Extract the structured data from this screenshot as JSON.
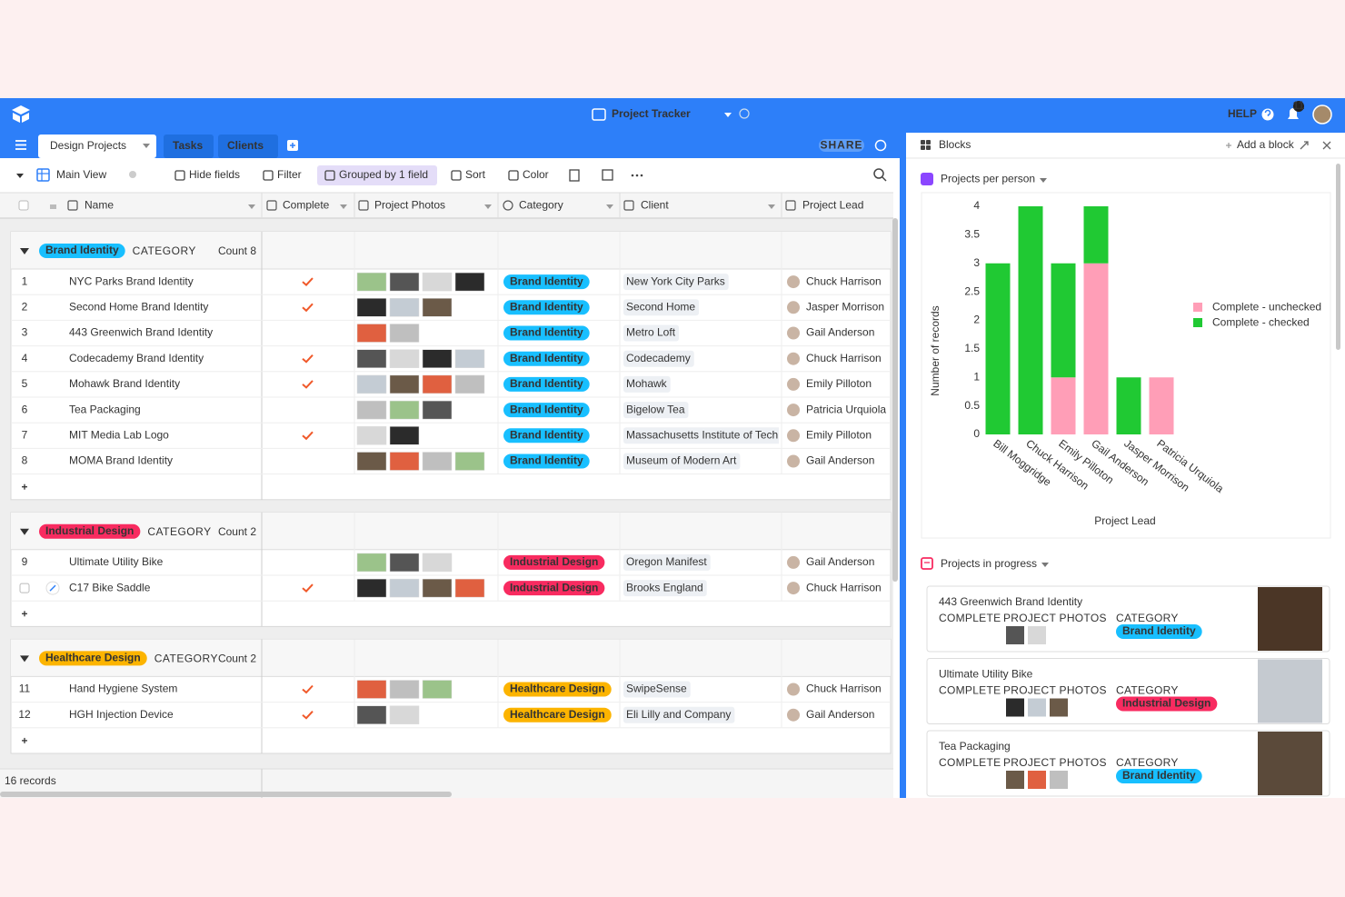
{
  "topbar": {
    "title": "Project Tracker",
    "help": "HELP",
    "notifications": 11
  },
  "tabs": {
    "items": [
      "Design Projects",
      "Tasks",
      "Clients"
    ],
    "share": "SHARE"
  },
  "toolbar": {
    "view": "Main View",
    "items": [
      "Hide fields",
      "Filter",
      "Grouped by 1 field",
      "Sort",
      "Color"
    ]
  },
  "table": {
    "columns": [
      "Name",
      "Complete",
      "Project Photos",
      "Category",
      "Client",
      "Project Lead"
    ],
    "groups": [
      {
        "label": "Brand Identity",
        "sublabel": "CATEGORY",
        "count": "Count 8",
        "color": "#18bfff",
        "rows": [
          {
            "num": 1,
            "name": "NYC Parks Brand Identity",
            "complete": true,
            "category": "Brand Identity",
            "client": "New York City Parks",
            "lead": "Chuck Harrison"
          },
          {
            "num": 2,
            "name": "Second Home Brand Identity",
            "complete": true,
            "category": "Brand Identity",
            "client": "Second Home",
            "lead": "Jasper Morrison"
          },
          {
            "num": 3,
            "name": "443 Greenwich Brand Identity",
            "complete": false,
            "category": "Brand Identity",
            "client": "Metro Loft",
            "lead": "Gail Anderson"
          },
          {
            "num": 4,
            "name": "Codecademy Brand Identity",
            "complete": true,
            "category": "Brand Identity",
            "client": "Codecademy",
            "lead": "Chuck Harrison"
          },
          {
            "num": 5,
            "name": "Mohawk Brand Identity",
            "complete": true,
            "category": "Brand Identity",
            "client": "Mohawk",
            "lead": "Emily Pilloton"
          },
          {
            "num": 6,
            "name": "Tea Packaging",
            "complete": false,
            "category": "Brand Identity",
            "client": "Bigelow Tea",
            "lead": "Patricia Urquiola"
          },
          {
            "num": 7,
            "name": "MIT Media Lab Logo",
            "complete": true,
            "category": "Brand Identity",
            "client": "Massachusetts Institute of Tech",
            "lead": "Emily Pilloton"
          },
          {
            "num": 8,
            "name": "MOMA Brand Identity",
            "complete": false,
            "category": "Brand Identity",
            "client": "Museum of Modern Art",
            "lead": "Gail Anderson"
          }
        ]
      },
      {
        "label": "Industrial Design",
        "sublabel": "CATEGORY",
        "count": "Count 2",
        "color": "#f82b60",
        "rows": [
          {
            "num": 9,
            "name": "Ultimate Utility Bike",
            "complete": false,
            "category": "Industrial Design",
            "client": "Oregon Manifest",
            "lead": "Gail Anderson"
          },
          {
            "num": null,
            "name": "C17 Bike Saddle",
            "complete": true,
            "category": "Industrial Design",
            "client": "Brooks England",
            "lead": "Chuck Harrison"
          }
        ]
      },
      {
        "label": "Healthcare Design",
        "sublabel": "CATEGORY",
        "count": "Count 2",
        "color": "#fcb400",
        "rows": [
          {
            "num": 11,
            "name": "Hand Hygiene System",
            "complete": true,
            "category": "Healthcare Design",
            "client": "SwipeSense",
            "lead": "Chuck Harrison"
          },
          {
            "num": 12,
            "name": "HGH Injection Device",
            "complete": true,
            "category": "Healthcare Design",
            "client": "Eli Lilly and Company",
            "lead": "Gail Anderson"
          }
        ]
      }
    ],
    "footer": "16 records"
  },
  "blocks": {
    "title": "Blocks",
    "add": "Add a block",
    "chart_title": "Projects per person",
    "list_title": "Projects in progress",
    "cards": [
      {
        "name": "443 Greenwich Brand Identity",
        "complete_label": "COMPLETE",
        "photos_label": "PROJECT PHOTOS",
        "category_label": "CATEGORY",
        "category": "Brand Identity",
        "color": "#18bfff"
      },
      {
        "name": "Ultimate Utility Bike",
        "complete_label": "COMPLETE",
        "photos_label": "PROJECT PHOTOS",
        "category_label": "CATEGORY",
        "category": "Industrial Design",
        "color": "#f82b60"
      },
      {
        "name": "Tea Packaging",
        "complete_label": "COMPLETE",
        "photos_label": "PROJECT PHOTOS",
        "category_label": "CATEGORY",
        "category": "Brand Identity",
        "color": "#18bfff"
      }
    ]
  },
  "chart_data": {
    "type": "bar",
    "stacked": true,
    "categories": [
      "Bill Moggridge",
      "Chuck Harrison",
      "Emily Pilloton",
      "Gail Anderson",
      "Jasper Morrison",
      "Patricia Urquiola"
    ],
    "series": [
      {
        "name": "Complete - unchecked",
        "color": "#ff9eb7",
        "values": [
          0,
          0,
          1,
          3,
          0,
          1
        ]
      },
      {
        "name": "Complete - checked",
        "color": "#20c933",
        "values": [
          3,
          4,
          2,
          1,
          1,
          0
        ]
      }
    ],
    "ylim": [
      0,
      4
    ],
    "yticks": [
      0,
      0.5,
      1,
      1.5,
      2,
      2.5,
      3,
      3.5,
      4
    ],
    "ylabel": "Number of records",
    "xlabel": "Project Lead",
    "legend": "right"
  }
}
